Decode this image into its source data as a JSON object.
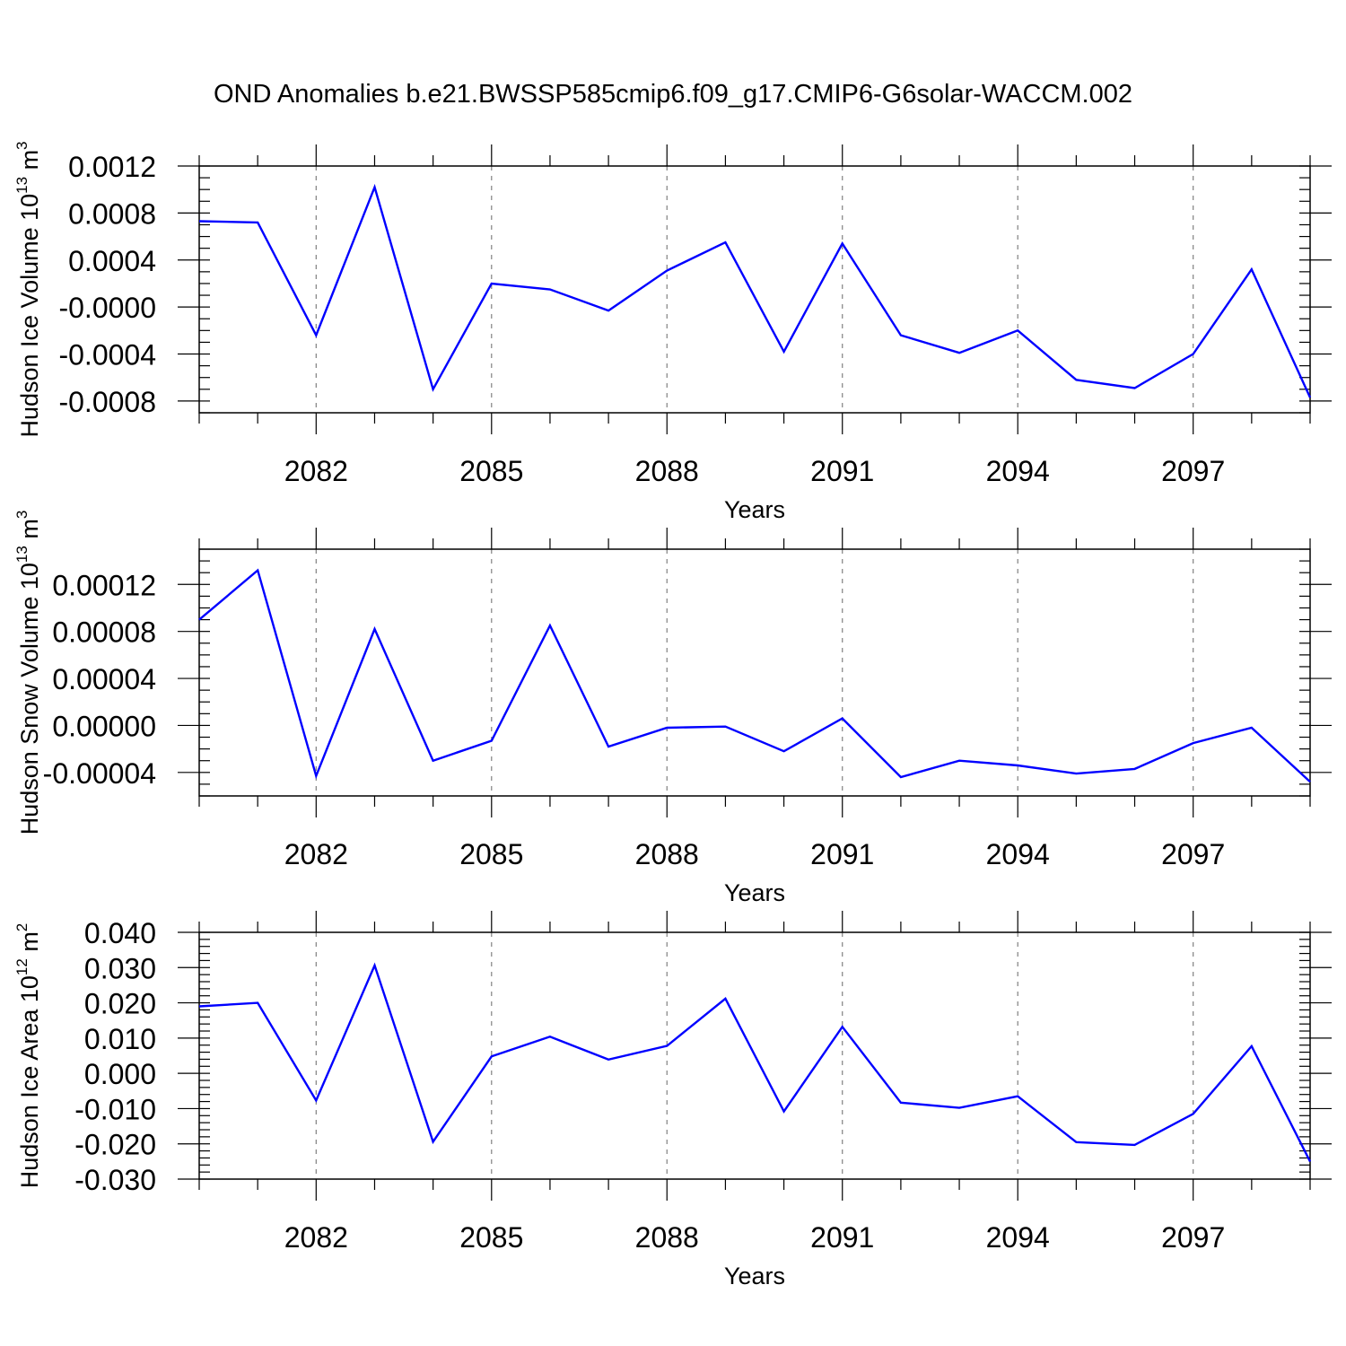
{
  "title": "OND Anomalies b.e21.BWSSP585cmip6.f09_g17.CMIP6-G6solar-WACCM.002",
  "line_color": "#0000ff",
  "chart_data": [
    {
      "type": "line",
      "ylabel_main": "Hudson Ice Volume 10",
      "ylabel_exp": "13",
      "ylabel_unit": " m",
      "ylabel_unit_exp": "3",
      "xlabel": "Years",
      "xlim": [
        2080,
        2099
      ],
      "ylim": [
        -0.0009,
        0.0012
      ],
      "x_ticks": [
        2082,
        2085,
        2088,
        2091,
        2094,
        2097
      ],
      "x_tick_labels": [
        "2082",
        "2085",
        "2088",
        "2091",
        "2094",
        "2097"
      ],
      "y_ticks": [
        0.0012,
        0.0008,
        0.0004,
        0,
        -0.0004,
        -0.0008
      ],
      "y_tick_labels": [
        "0.0012",
        "0.0008",
        "0.0004",
        "-0.0000",
        "-0.0004",
        "-0.0008"
      ],
      "y_minor_step": 0.0001,
      "grid_x": true,
      "series": [
        {
          "x": [
            2080,
            2081,
            2082,
            2083,
            2084,
            2085,
            2086,
            2087,
            2088,
            2089,
            2090,
            2091,
            2092,
            2093,
            2094,
            2095,
            2096,
            2097,
            2098,
            2099
          ],
          "values": [
            0.00073,
            0.00072,
            -0.00024,
            0.00102,
            -0.0007,
            0.0002,
            0.00015,
            -3e-05,
            0.00031,
            0.00055,
            -0.00038,
            0.00054,
            -0.00024,
            -0.00039,
            -0.0002,
            -0.00062,
            -0.00069,
            -0.0004,
            0.00032,
            -0.00077
          ]
        }
      ]
    },
    {
      "type": "line",
      "ylabel_main": "Hudson Snow Volume 10",
      "ylabel_exp": "13",
      "ylabel_unit": " m",
      "ylabel_unit_exp": "3",
      "xlabel": "Years",
      "xlim": [
        2080,
        2099
      ],
      "ylim": [
        -6e-05,
        0.00015
      ],
      "x_ticks": [
        2082,
        2085,
        2088,
        2091,
        2094,
        2097
      ],
      "x_tick_labels": [
        "2082",
        "2085",
        "2088",
        "2091",
        "2094",
        "2097"
      ],
      "y_ticks": [
        0.00012,
        8e-05,
        4e-05,
        0,
        -4e-05
      ],
      "y_tick_labels": [
        "0.00012",
        "0.00008",
        "0.00004",
        "0.00000",
        "-0.00004"
      ],
      "y_minor_step": 1e-05,
      "grid_x": true,
      "series": [
        {
          "x": [
            2080,
            2081,
            2082,
            2083,
            2084,
            2085,
            2086,
            2087,
            2088,
            2089,
            2090,
            2091,
            2092,
            2093,
            2094,
            2095,
            2096,
            2097,
            2098,
            2099
          ],
          "values": [
            9e-05,
            0.000132,
            -4.3e-05,
            8.2e-05,
            -3e-05,
            -1.3e-05,
            8.5e-05,
            -1.8e-05,
            -2e-06,
            -1e-06,
            -2.2e-05,
            6e-06,
            -4.4e-05,
            -3e-05,
            -3.4e-05,
            -4.1e-05,
            -3.7e-05,
            -1.5e-05,
            -2e-06,
            -4.8e-05
          ]
        }
      ]
    },
    {
      "type": "line",
      "ylabel_main": "Hudson Ice Area 10",
      "ylabel_exp": "12",
      "ylabel_unit": " m",
      "ylabel_unit_exp": "2",
      "xlabel": "Years",
      "xlim": [
        2080,
        2099
      ],
      "ylim": [
        -0.03,
        0.04
      ],
      "x_ticks": [
        2082,
        2085,
        2088,
        2091,
        2094,
        2097
      ],
      "x_tick_labels": [
        "2082",
        "2085",
        "2088",
        "2091",
        "2094",
        "2097"
      ],
      "y_ticks": [
        0.04,
        0.03,
        0.02,
        0.01,
        0,
        -0.01,
        -0.02,
        -0.03
      ],
      "y_tick_labels": [
        "0.040",
        "0.030",
        "0.020",
        "0.010",
        "0.000",
        "-0.010",
        "-0.020",
        "-0.030"
      ],
      "y_minor_step": 0.002,
      "grid_x": true,
      "series": [
        {
          "x": [
            2080,
            2081,
            2082,
            2083,
            2084,
            2085,
            2086,
            2087,
            2088,
            2089,
            2090,
            2091,
            2092,
            2093,
            2094,
            2095,
            2096,
            2097,
            2098,
            2099
          ],
          "values": [
            0.019,
            0.02,
            -0.0077,
            0.0306,
            -0.0194,
            0.0048,
            0.0104,
            0.0039,
            0.0078,
            0.0212,
            -0.0108,
            0.0132,
            -0.0083,
            -0.0098,
            -0.0065,
            -0.0195,
            -0.0203,
            -0.0115,
            0.0077,
            -0.025
          ]
        }
      ]
    }
  ]
}
